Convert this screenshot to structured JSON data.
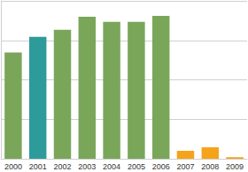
{
  "chart_data": {
    "type": "bar",
    "categories": [
      "2000",
      "2001",
      "2002",
      "2003",
      "2004",
      "2005",
      "2006",
      "2007",
      "2008",
      "2009"
    ],
    "values": [
      2.69,
      3.09,
      3.27,
      3.6,
      3.47,
      3.47,
      3.62,
      0.2,
      0.29,
      0.04
    ],
    "colors": [
      "#7aa65a",
      "#2e9b9b",
      "#7aa65a",
      "#7aa65a",
      "#7aa65a",
      "#7aa65a",
      "#7aa65a",
      "#f5a31a",
      "#f5a31a",
      "#f5a31a"
    ],
    "ylim": [
      0,
      4
    ],
    "yticks": [
      0,
      1,
      2,
      3,
      4
    ],
    "grid": true,
    "tick_labels": "x"
  }
}
